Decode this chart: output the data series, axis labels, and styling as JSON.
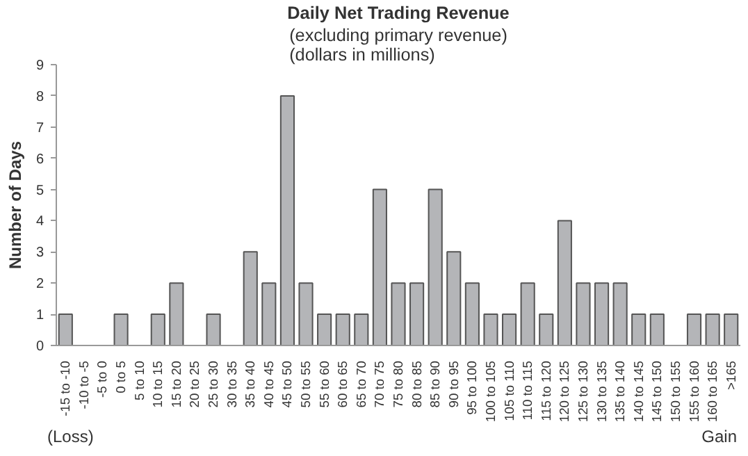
{
  "chart_data": {
    "type": "bar",
    "title": "Daily Net Trading Revenue",
    "subtitle": "(excluding primary revenue)\n(dollars in millions)",
    "ylabel": "Number of Days",
    "categories": [
      "-15 to -10",
      "-10 to -5",
      "-5 to 0",
      "0 to 5",
      "5 to 10",
      "10 to 15",
      "15 to 20",
      "20 to 25",
      "25 to 30",
      "30 to 35",
      "35 to 40",
      "40 to 45",
      "45 to 50",
      "50 to 55",
      "55 to 60",
      "60 to 65",
      "65 to 70",
      "70 to 75",
      "75 to 80",
      "80 to 85",
      "85 to 90",
      "90 to 95",
      "95 to 100",
      "100 to 105",
      "105 to 110",
      "110 to 115",
      "115 to 120",
      "120 to 125",
      "125 to 130",
      "130 to 135",
      "135 to 140",
      "140 to 145",
      "145 to 150",
      "150 to 155",
      "155 to 160",
      "160 to 165",
      ">165"
    ],
    "values": [
      1,
      0,
      0,
      1,
      0,
      1,
      2,
      0,
      1,
      0,
      3,
      2,
      8,
      2,
      1,
      1,
      1,
      5,
      2,
      2,
      5,
      3,
      2,
      1,
      1,
      2,
      1,
      4,
      2,
      2,
      2,
      1,
      1,
      0,
      1,
      1,
      1
    ],
    "color": "#b4b5b8",
    "ylim": [
      0,
      9
    ],
    "yticks": [
      0,
      1,
      2,
      3,
      4,
      5,
      6,
      7,
      8,
      9
    ],
    "grid": false,
    "annotations": [
      "(Loss)",
      "Gain"
    ]
  }
}
